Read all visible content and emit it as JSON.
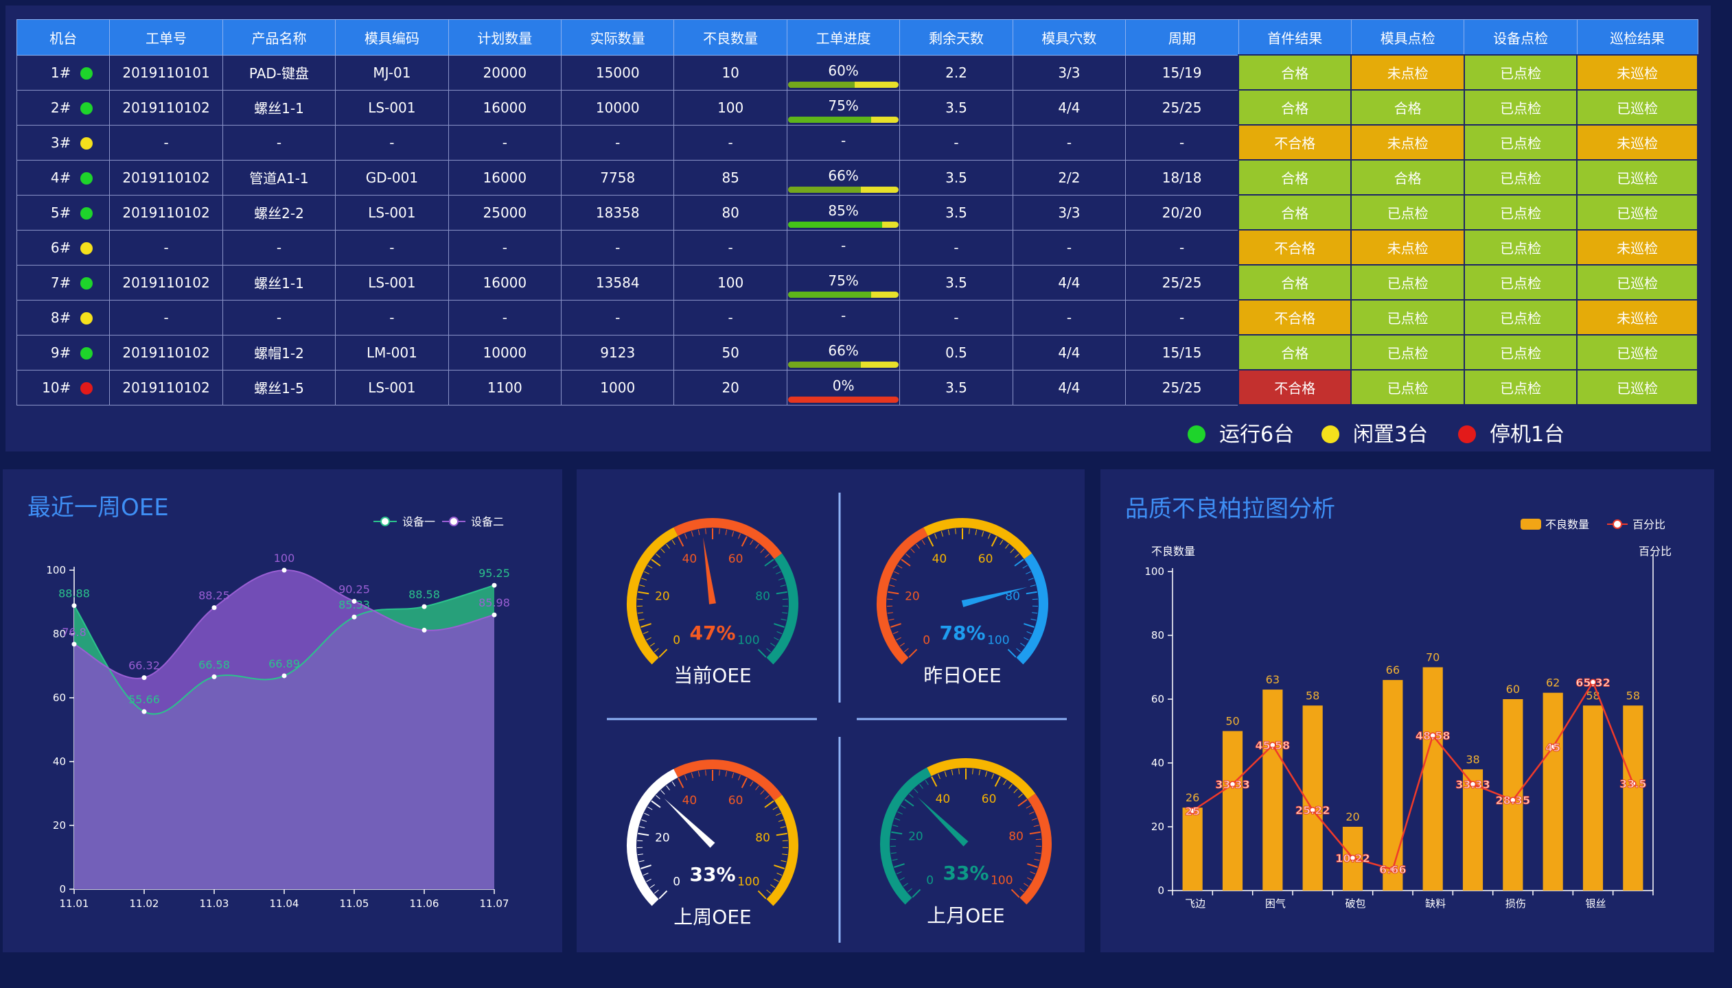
{
  "table": {
    "headers": [
      "机台",
      "工单号",
      "产品名称",
      "模具编码",
      "计划数量",
      "实际数量",
      "不良数量",
      "工单进度",
      "剩余天数",
      "模具穴数",
      "周期",
      "首件结果",
      "模具点检",
      "设备点检",
      "巡检结果"
    ],
    "rows": [
      {
        "machine": "1#",
        "status": "run",
        "order": "2019110101",
        "product": "PAD-键盘",
        "mold": "MJ-01",
        "plan": "20000",
        "actual": "15000",
        "defect": "10",
        "progress": "60%",
        "pct": 60,
        "days": "2.2",
        "cavity": "3/3",
        "cycle": "15/19",
        "checks": [
          "合格",
          "未点检",
          "已点检",
          "未巡检"
        ]
      },
      {
        "machine": "2#",
        "status": "run",
        "order": "2019110102",
        "product": "螺丝1-1",
        "mold": "LS-001",
        "plan": "16000",
        "actual": "10000",
        "defect": "100",
        "progress": "75%",
        "pct": 75,
        "days": "3.5",
        "cavity": "4/4",
        "cycle": "25/25",
        "checks": [
          "合格",
          "合格",
          "已点检",
          "已巡检"
        ]
      },
      {
        "machine": "3#",
        "status": "idle",
        "order": "-",
        "product": "-",
        "mold": "-",
        "plan": "-",
        "actual": "-",
        "defect": "-",
        "progress": "-",
        "pct": null,
        "days": "-",
        "cavity": "-",
        "cycle": "-",
        "checks": [
          "不合格",
          "未点检",
          "已点检",
          "未巡检"
        ]
      },
      {
        "machine": "4#",
        "status": "run",
        "order": "2019110102",
        "product": "管道A1-1",
        "mold": "GD-001",
        "plan": "16000",
        "actual": "7758",
        "defect": "85",
        "progress": "66%",
        "pct": 66,
        "days": "3.5",
        "cavity": "2/2",
        "cycle": "18/18",
        "checks": [
          "合格",
          "合格",
          "已点检",
          "已巡检"
        ]
      },
      {
        "machine": "5#",
        "status": "run",
        "order": "2019110102",
        "product": "螺丝2-2",
        "mold": "LS-001",
        "plan": "25000",
        "actual": "18358",
        "defect": "80",
        "progress": "85%",
        "pct": 85,
        "days": "3.5",
        "cavity": "3/3",
        "cycle": "20/20",
        "checks": [
          "合格",
          "已点检",
          "已点检",
          "已巡检"
        ]
      },
      {
        "machine": "6#",
        "status": "idle",
        "order": "-",
        "product": "-",
        "mold": "-",
        "plan": "-",
        "actual": "-",
        "defect": "-",
        "progress": "-",
        "pct": null,
        "days": "-",
        "cavity": "-",
        "cycle": "-",
        "checks": [
          "不合格",
          "未点检",
          "已点检",
          "未巡检"
        ]
      },
      {
        "machine": "7#",
        "status": "run",
        "order": "2019110102",
        "product": "螺丝1-1",
        "mold": "LS-001",
        "plan": "16000",
        "actual": "13584",
        "defect": "100",
        "progress": "75%",
        "pct": 75,
        "days": "3.5",
        "cavity": "4/4",
        "cycle": "25/25",
        "checks": [
          "合格",
          "已点检",
          "已点检",
          "已巡检"
        ]
      },
      {
        "machine": "8#",
        "status": "idle",
        "order": "-",
        "product": "-",
        "mold": "-",
        "plan": "-",
        "actual": "-",
        "defect": "-",
        "progress": "-",
        "pct": null,
        "days": "-",
        "cavity": "-",
        "cycle": "-",
        "checks": [
          "不合格",
          "已点检",
          "已点检",
          "未巡检"
        ]
      },
      {
        "machine": "9#",
        "status": "run",
        "order": "2019110102",
        "product": "螺帽1-2",
        "mold": "LM-001",
        "plan": "10000",
        "actual": "9123",
        "defect": "50",
        "progress": "66%",
        "pct": 66,
        "days": "0.5",
        "cavity": "4/4",
        "cycle": "15/15",
        "checks": [
          "合格",
          "已点检",
          "已点检",
          "已巡检"
        ]
      },
      {
        "machine": "10#",
        "status": "stop",
        "order": "2019110102",
        "product": "螺丝1-5",
        "mold": "LS-001",
        "plan": "1100",
        "actual": "1000",
        "defect": "20",
        "progress": "0%",
        "pct": 0,
        "days": "3.5",
        "cavity": "4/4",
        "cycle": "25/25",
        "checks": [
          "不合格",
          "已点检",
          "已点检",
          "已巡检"
        ]
      }
    ]
  },
  "status_colors": {
    "run": "#1ed42b",
    "idle": "#f5e11c",
    "stop": "#e31a1a"
  },
  "check_colors": {
    "合格": "#97c72c",
    "已点检": "#97c72c",
    "已巡检": "#97c72c",
    "未点检": "#e5ab09",
    "未巡检": "#e5ab09",
    "不合格": "#e5ab09",
    "不合格_stop": "#c3302e"
  },
  "status_legend": [
    {
      "label": "运行6台",
      "color": "#1ed42b"
    },
    {
      "label": "闲置3台",
      "color": "#f5e11c"
    },
    {
      "label": "停机1台",
      "color": "#e31a1a"
    }
  ],
  "oee_week": {
    "title": "最近一周OEE",
    "legend": [
      "设备一",
      "设备二"
    ]
  },
  "gauges": [
    {
      "label": "当前OEE",
      "value": 47,
      "display": "47%",
      "ticks": [
        "0",
        "20",
        "40",
        "60",
        "80",
        "100"
      ],
      "colors": [
        "#f7b500",
        "#f55a22",
        "#0d9a86"
      ],
      "value_color": "#f55a22",
      "needle": "#f55a22",
      "pointer": "needle"
    },
    {
      "label": "昨日OEE",
      "value": 78,
      "display": "78%",
      "ticks": [
        "0",
        "20",
        "40",
        "60",
        "80",
        "100"
      ],
      "colors": [
        "#f55a22",
        "#f7b500",
        "#1e9df0"
      ],
      "value_color": "#1e9df0",
      "needle": "#1e9df0",
      "pointer": "needle"
    },
    {
      "label": "上周OEE",
      "value": 33,
      "display": "33%",
      "ticks": [
        "0",
        "20",
        "40",
        "60",
        "80",
        "100"
      ],
      "colors": [
        "#ffffff",
        "#f55a22",
        "#f7b500"
      ],
      "value_color": "#ffffff",
      "needle": "#ffffff",
      "pointer": "needle"
    },
    {
      "label": "上月OEE",
      "value": 33,
      "display": "33%",
      "ticks": [
        "0",
        "20",
        "40",
        "60",
        "80",
        "100"
      ],
      "colors": [
        "#0d9a86",
        "#f7b500",
        "#f55a22"
      ],
      "value_color": "#0d9a86",
      "needle": "#0d9a86",
      "pointer": "needle"
    }
  ],
  "pareto": {
    "title": "品质不良柏拉图分析",
    "legend": [
      "不良数量",
      "百分比"
    ],
    "left_axis_label": "不良数量",
    "right_axis_label": "百分比"
  },
  "chart_data": [
    {
      "type": "area",
      "title": "最近一周OEE",
      "x": [
        "11.01",
        "11.02",
        "11.03",
        "11.04",
        "11.05",
        "11.06",
        "11.07"
      ],
      "ylim": [
        0,
        100
      ],
      "yticks": [
        0,
        20,
        40,
        60,
        80,
        100
      ],
      "series": [
        {
          "name": "设备一",
          "values": [
            88.88,
            55.66,
            66.58,
            66.89,
            85.33,
            88.58,
            95.25
          ],
          "color": "#2bc38c"
        },
        {
          "name": "设备二",
          "values": [
            76.8,
            66.32,
            88.25,
            100,
            90.25,
            81.2,
            85.98
          ],
          "color": "#9a5fd4",
          "labels": [
            "76.8",
            "66.32",
            "88.25",
            "100",
            "90.25",
            "",
            "85.98"
          ]
        }
      ]
    },
    {
      "type": "bar",
      "title": "品质不良柏拉图分析",
      "categories": [
        "飞边",
        "",
        "困气",
        "",
        "破包",
        "",
        "缺料",
        "",
        "损伤",
        "",
        "银丝",
        ""
      ],
      "ylim": [
        0,
        100
      ],
      "yticks": [
        0,
        20,
        40,
        60,
        80,
        100
      ],
      "series": [
        {
          "name": "不良数量",
          "type": "bar",
          "values": [
            26,
            50,
            63,
            58,
            20,
            66,
            70,
            38,
            60,
            62,
            58,
            58
          ],
          "color": "#f2a515"
        },
        {
          "name": "百分比",
          "type": "line",
          "values": [
            25,
            33.33,
            45.58,
            25.22,
            10.22,
            6.66,
            48.58,
            33.33,
            28.35,
            45,
            65.32,
            33.5
          ],
          "color": "#ef3a2a"
        }
      ]
    }
  ]
}
